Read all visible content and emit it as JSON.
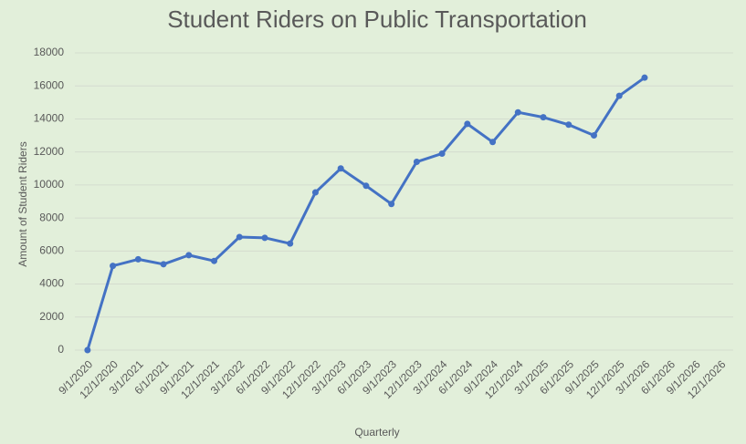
{
  "chart_data": {
    "type": "line",
    "title": "Student Riders on Public Transportation",
    "x_label": "Quarterly",
    "y_label": "Amount of Student Riders",
    "categories": [
      "9/1/2020",
      "12/1/2020",
      "3/1/2021",
      "6/1/2021",
      "9/1/2021",
      "12/1/2021",
      "3/1/2022",
      "6/1/2022",
      "9/1/2022",
      "12/1/2022",
      "3/1/2023",
      "6/1/2023",
      "9/1/2023",
      "12/1/2023",
      "3/1/2024",
      "6/1/2024",
      "9/1/2024",
      "12/1/2024",
      "3/1/2025",
      "6/1/2025",
      "9/1/2025",
      "12/1/2025",
      "3/1/2026",
      "6/1/2026",
      "9/1/2026",
      "12/1/2026"
    ],
    "values": [
      0,
      5100,
      5500,
      5200,
      5750,
      5400,
      6850,
      6800,
      6450,
      9550,
      11000,
      9950,
      8850,
      11400,
      11900,
      13700,
      12600,
      14400,
      14100,
      13650,
      13000,
      15400,
      16500,
      null,
      null,
      null
    ],
    "color": "#4472c4",
    "ylim": [
      0,
      18000
    ],
    "yticks": [
      0,
      2000,
      4000,
      6000,
      8000,
      10000,
      12000,
      14000,
      16000,
      18000
    ],
    "grid": true
  }
}
